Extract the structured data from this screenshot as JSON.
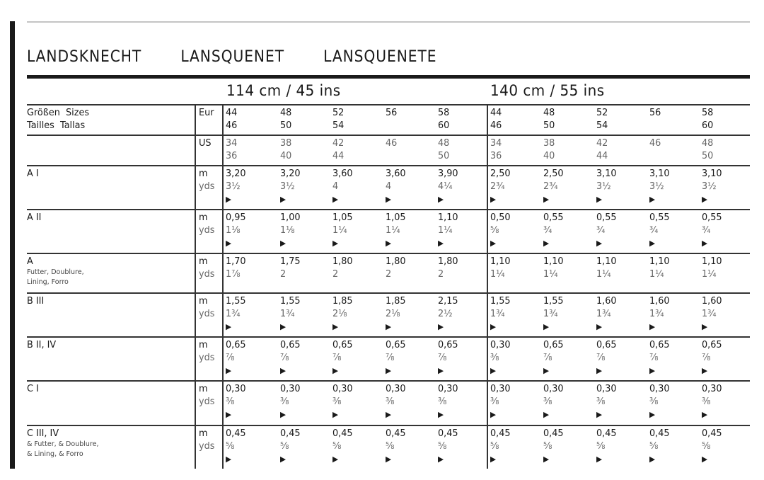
{
  "title": "LANDSKNECHT   LANSQUENET   LANSQUENETE",
  "fabric_widths": [
    "114 cm / 45 ins",
    "140 cm / 55 ins"
  ],
  "size_label": [
    "Größen  Sizes",
    "Tailles  Tallas"
  ],
  "eur_label": "Eur",
  "us_label": "US",
  "unit_m": "m",
  "unit_yds": "yds",
  "arrow_icon": "▶",
  "eur_sizes": [
    [
      "44",
      "46"
    ],
    [
      "48",
      "50"
    ],
    [
      "52",
      "54"
    ],
    [
      "56",
      ""
    ],
    [
      "58",
      "60"
    ],
    [
      "44",
      "46"
    ],
    [
      "48",
      "50"
    ],
    [
      "52",
      "54"
    ],
    [
      "56",
      ""
    ],
    [
      "58",
      "60"
    ]
  ],
  "us_sizes": [
    [
      "34",
      "36"
    ],
    [
      "38",
      "40"
    ],
    [
      "42",
      "44"
    ],
    [
      "46",
      ""
    ],
    [
      "48",
      "50"
    ],
    [
      "34",
      "36"
    ],
    [
      "38",
      "40"
    ],
    [
      "42",
      "44"
    ],
    [
      "46",
      ""
    ],
    [
      "48",
      "50"
    ]
  ],
  "rows": [
    {
      "label": "A I",
      "sub": [],
      "arrow": true,
      "m": [
        "3,20",
        "3,20",
        "3,60",
        "3,60",
        "3,90",
        "2,50",
        "2,50",
        "3,10",
        "3,10",
        "3,10"
      ],
      "yds": [
        "3½",
        "3½",
        "4",
        "4",
        "4¼",
        "2¾",
        "2¾",
        "3½",
        "3½",
        "3½"
      ]
    },
    {
      "label": "A II",
      "sub": [],
      "arrow": true,
      "m": [
        "0,95",
        "1,00",
        "1,05",
        "1,05",
        "1,10",
        "0,50",
        "0,55",
        "0,55",
        "0,55",
        "0,55"
      ],
      "yds": [
        "1⅛",
        "1⅛",
        "1¼",
        "1¼",
        "1¼",
        "⅝",
        "¾",
        "¾",
        "¾",
        "¾"
      ]
    },
    {
      "label": "A",
      "sub": [
        "Futter, Doublure,",
        "Lining, Forro"
      ],
      "arrow": false,
      "m": [
        "1,70",
        "1,75",
        "1,80",
        "1,80",
        "1,80",
        "1,10",
        "1,10",
        "1,10",
        "1,10",
        "1,10"
      ],
      "yds": [
        "1⅞",
        "2",
        "2",
        "2",
        "2",
        "1¼",
        "1¼",
        "1¼",
        "1¼",
        "1¼"
      ]
    },
    {
      "label": "B III",
      "sub": [],
      "arrow": true,
      "m": [
        "1,55",
        "1,55",
        "1,85",
        "1,85",
        "2,15",
        "1,55",
        "1,55",
        "1,60",
        "1,60",
        "1,60"
      ],
      "yds": [
        "1¾",
        "1¾",
        "2⅛",
        "2⅛",
        "2½",
        "1¾",
        "1¾",
        "1¾",
        "1¾",
        "1¾"
      ]
    },
    {
      "label": "B II, IV",
      "sub": [],
      "arrow": true,
      "m": [
        "0,65",
        "0,65",
        "0,65",
        "0,65",
        "0,65",
        "0,30",
        "0,65",
        "0,65",
        "0,65",
        "0,65"
      ],
      "yds": [
        "⅞",
        "⅞",
        "⅞",
        "⅞",
        "⅞",
        "⅜",
        "⅞",
        "⅞",
        "⅞",
        "⅞"
      ]
    },
    {
      "label": "C I",
      "sub": [],
      "arrow": true,
      "m": [
        "0,30",
        "0,30",
        "0,30",
        "0,30",
        "0,30",
        "0,30",
        "0,30",
        "0,30",
        "0,30",
        "0,30"
      ],
      "yds": [
        "⅜",
        "⅜",
        "⅜",
        "⅜",
        "⅜",
        "⅜",
        "⅜",
        "⅜",
        "⅜",
        "⅜"
      ]
    },
    {
      "label": "C III, IV",
      "sub": [
        "& Futter, & Doublure,",
        "& Lining, & Forro"
      ],
      "arrow": true,
      "m": [
        "0,45",
        "0,45",
        "0,45",
        "0,45",
        "0,45",
        "0,45",
        "0,45",
        "0,45",
        "0,45",
        "0,45"
      ],
      "yds": [
        "⅝",
        "⅝",
        "⅝",
        "⅝",
        "⅝",
        "⅝",
        "⅝",
        "⅝",
        "⅝",
        "⅝"
      ]
    }
  ]
}
